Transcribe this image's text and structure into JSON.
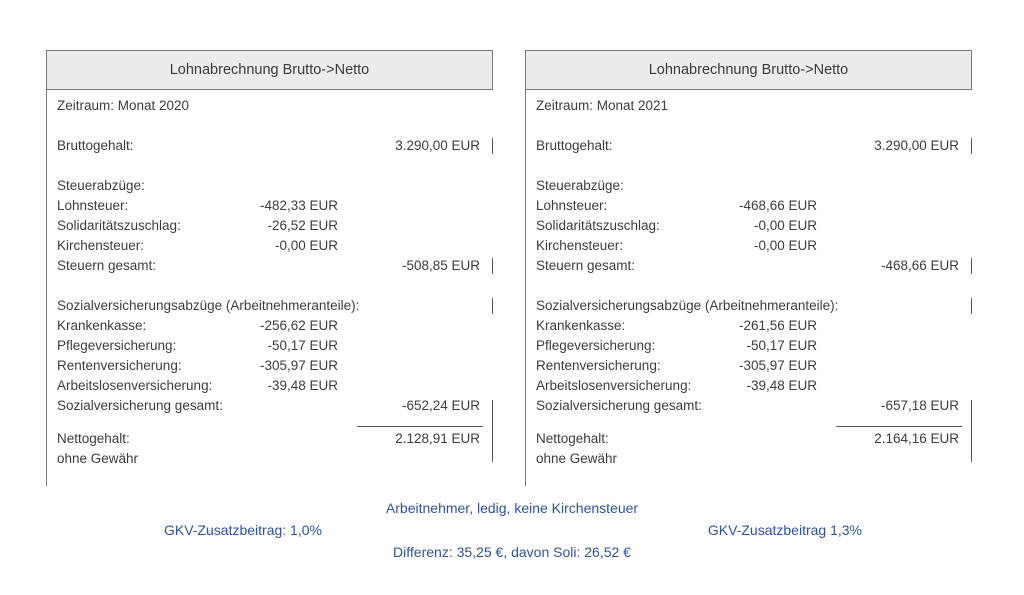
{
  "colors": {
    "header_bg": "#ececec",
    "panel_border": "#7a7a7a",
    "body_text": "#3d3d3d",
    "tick_gray": "#555555",
    "footer_blue": "#2f5496",
    "page_bg": "#ffffff"
  },
  "panels": [
    {
      "title": "Lohnabrechnung Brutto->Netto",
      "rows": [
        {
          "type": "text",
          "name": "row-zeitraum",
          "label": "Zeitraum: Monat 2020"
        },
        {
          "type": "spacer"
        },
        {
          "type": "row",
          "name": "row-bruttogehalt",
          "label": "Bruttogehalt:",
          "value_right": "3.290,00 EUR",
          "tick": true
        },
        {
          "type": "spacer"
        },
        {
          "type": "text",
          "name": "row-steuerabzuege-header",
          "label": "Steuerabzüge:"
        },
        {
          "type": "row",
          "name": "row-lohnsteuer",
          "label": "Lohnsteuer:",
          "value_mid": "-482,33 EUR"
        },
        {
          "type": "row",
          "name": "row-solidaritaetszuschlag",
          "label": "Solidaritätszuschlag:",
          "value_mid": "-26,52 EUR"
        },
        {
          "type": "row",
          "name": "row-kirchensteuer",
          "label": "Kirchensteuer:",
          "value_mid": "-0,00 EUR"
        },
        {
          "type": "row",
          "name": "row-steuern-gesamt",
          "label": "Steuern gesamt:",
          "value_right": "-508,85 EUR",
          "tick": true
        },
        {
          "type": "spacer"
        },
        {
          "type": "text",
          "name": "row-sozialversicherung-header",
          "label": "Sozialversicherungsabzüge (Arbeitnehmeranteile):",
          "tick": true
        },
        {
          "type": "row",
          "name": "row-krankenkasse",
          "label": "Krankenkasse:",
          "value_mid": "-256,62 EUR"
        },
        {
          "type": "row",
          "name": "row-pflegeversicherung",
          "label": "Pflegeversicherung:",
          "value_mid": "-50,17 EUR"
        },
        {
          "type": "row",
          "name": "row-rentenversicherung",
          "label": "Rentenversicherung:",
          "value_mid": "-305,97 EUR"
        },
        {
          "type": "row",
          "name": "row-arbeitslosenversicherung",
          "label": "Arbeitslosenversicherung:",
          "value_mid": "-39,48 EUR"
        },
        {
          "type": "row",
          "name": "row-sozialversicherung-gesamt",
          "label": "Sozialversicherung gesamt:",
          "value_right": "-652,24 EUR"
        },
        {
          "type": "rule"
        },
        {
          "type": "row",
          "name": "row-nettogehalt",
          "label": "Nettogehalt:",
          "value_right": "2.128,91 EUR"
        },
        {
          "type": "text",
          "name": "row-ohne-gewaehr",
          "label": "ohne Gewähr"
        }
      ]
    },
    {
      "title": "Lohnabrechnung Brutto->Netto",
      "rows": [
        {
          "type": "text",
          "name": "row-zeitraum",
          "label": "Zeitraum: Monat 2021"
        },
        {
          "type": "spacer"
        },
        {
          "type": "row",
          "name": "row-bruttogehalt",
          "label": "Bruttogehalt:",
          "value_right": "3.290,00 EUR",
          "tick": true
        },
        {
          "type": "spacer"
        },
        {
          "type": "text",
          "name": "row-steuerabzuege-header",
          "label": "Steuerabzüge:"
        },
        {
          "type": "row",
          "name": "row-lohnsteuer",
          "label": "Lohnsteuer:",
          "value_mid": "-468,66 EUR"
        },
        {
          "type": "row",
          "name": "row-solidaritaetszuschlag",
          "label": "Solidaritätszuschlag:",
          "value_mid": "-0,00 EUR"
        },
        {
          "type": "row",
          "name": "row-kirchensteuer",
          "label": "Kirchensteuer:",
          "value_mid": "-0,00 EUR"
        },
        {
          "type": "row",
          "name": "row-steuern-gesamt",
          "label": "Steuern gesamt:",
          "value_right": "-468,66 EUR",
          "tick": true
        },
        {
          "type": "spacer"
        },
        {
          "type": "text",
          "name": "row-sozialversicherung-header",
          "label": "Sozialversicherungsabzüge (Arbeitnehmeranteile):",
          "tick": true
        },
        {
          "type": "row",
          "name": "row-krankenkasse",
          "label": "Krankenkasse:",
          "value_mid": "-261,56 EUR"
        },
        {
          "type": "row",
          "name": "row-pflegeversicherung",
          "label": "Pflegeversicherung:",
          "value_mid": "-50,17 EUR"
        },
        {
          "type": "row",
          "name": "row-rentenversicherung",
          "label": "Rentenversicherung:",
          "value_mid": "-305,97 EUR"
        },
        {
          "type": "row",
          "name": "row-arbeitslosenversicherung",
          "label": "Arbeitslosenversicherung:",
          "value_mid": "-39,48 EUR"
        },
        {
          "type": "row",
          "name": "row-sozialversicherung-gesamt",
          "label": "Sozialversicherung gesamt:",
          "value_right": "-657,18 EUR"
        },
        {
          "type": "rule"
        },
        {
          "type": "row",
          "name": "row-nettogehalt",
          "label": "Nettogehalt:",
          "value_right": "2.164,16 EUR"
        },
        {
          "type": "text",
          "name": "row-ohne-gewaehr",
          "label": "ohne Gewähr"
        }
      ]
    }
  ],
  "footer": {
    "line1": "Arbeitnehmer, ledig, keine Kirchensteuer",
    "line2_left": "GKV-Zusatzbeitrag: 1,0%",
    "line2_right": "GKV-Zusatzbeitrag 1,3%",
    "line3": "Differenz: 35,25 €, davon Soli: 26,52 €"
  }
}
